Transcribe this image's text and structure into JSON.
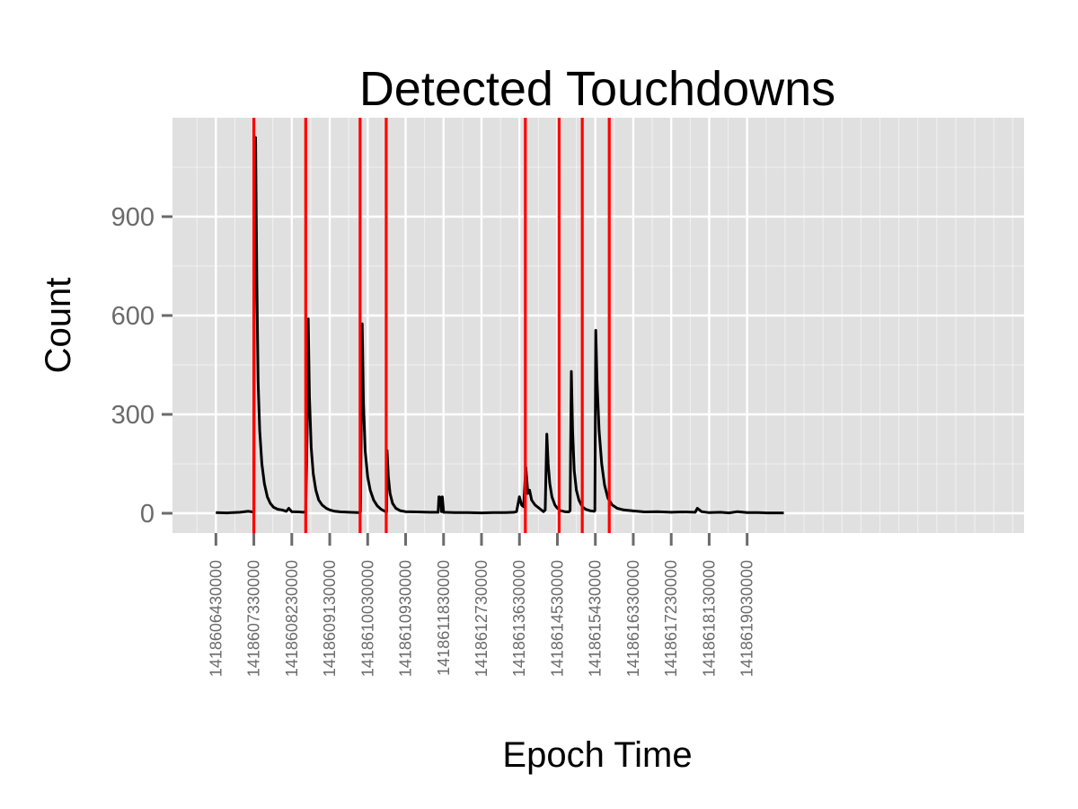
{
  "chart_data": {
    "type": "line",
    "title": "Detected Touchdowns",
    "xlabel": "Epoch Time",
    "ylabel": "Count",
    "xlim": [
      1418605400000,
      1418625600000
    ],
    "ylim": [
      -60,
      1200
    ],
    "x_ticks": [
      1418606430000,
      1418607330000,
      1418608230000,
      1418609130000,
      1418610030000,
      1418610930000,
      1418611830000,
      1418612730000,
      1418613630000,
      1418614530000,
      1418615430000,
      1418616330000,
      1418617230000,
      1418618130000,
      1418619030000
    ],
    "x_tick_labels": [
      "1418606430000",
      "1418607330000",
      "1418608230000",
      "1418609130000",
      "1418610030000",
      "1418610930000",
      "1418611830000",
      "1418612730000",
      "1418613630000",
      "1418614530000",
      "1418615430000",
      "1418616330000",
      "1418617230000",
      "1418618130000",
      "1418619030000"
    ],
    "y_ticks": [
      0,
      300,
      600,
      900
    ],
    "y_tick_labels": [
      "0",
      "300",
      "600",
      "900"
    ],
    "grid": true,
    "colors": {
      "panel": "#e0e0e0",
      "grid": "#ffffff",
      "line": "#000000",
      "marker": "#ff0000"
    },
    "series": [
      {
        "points": [
          [
            1418606430000,
            2
          ],
          [
            1418606700000,
            1
          ],
          [
            1418607000000,
            3
          ],
          [
            1418607200000,
            6
          ],
          [
            1418607300000,
            4
          ],
          [
            1418607330000,
            2
          ],
          [
            1418607340000,
            900
          ],
          [
            1418607370000,
            1140
          ],
          [
            1418607400000,
            700
          ],
          [
            1418607430000,
            400
          ],
          [
            1418607470000,
            250
          ],
          [
            1418607520000,
            150
          ],
          [
            1418607580000,
            90
          ],
          [
            1418607650000,
            50
          ],
          [
            1418607720000,
            30
          ],
          [
            1418607800000,
            18
          ],
          [
            1418607900000,
            12
          ],
          [
            1418608000000,
            10
          ],
          [
            1418608100000,
            6
          ],
          [
            1418608160000,
            15
          ],
          [
            1418608230000,
            5
          ],
          [
            1418608400000,
            4
          ],
          [
            1418608500000,
            3
          ],
          [
            1418608560000,
            5
          ],
          [
            1418608600000,
            300
          ],
          [
            1418608620000,
            590
          ],
          [
            1418608650000,
            350
          ],
          [
            1418608690000,
            200
          ],
          [
            1418608740000,
            120
          ],
          [
            1418608800000,
            70
          ],
          [
            1418608870000,
            40
          ],
          [
            1418608950000,
            25
          ],
          [
            1418609050000,
            15
          ],
          [
            1418609130000,
            10
          ],
          [
            1418609250000,
            6
          ],
          [
            1418609400000,
            4
          ],
          [
            1418609600000,
            3
          ],
          [
            1418609800000,
            2
          ],
          [
            1418609860000,
            4
          ],
          [
            1418609880000,
            300
          ],
          [
            1418609900000,
            575
          ],
          [
            1418609930000,
            330
          ],
          [
            1418609970000,
            190
          ],
          [
            1418610030000,
            110
          ],
          [
            1418610090000,
            70
          ],
          [
            1418610170000,
            40
          ],
          [
            1418610260000,
            22
          ],
          [
            1418610350000,
            12
          ],
          [
            1418610440000,
            6
          ],
          [
            1418610480000,
            4
          ],
          [
            1418610490000,
            190
          ],
          [
            1418610520000,
            110
          ],
          [
            1418610560000,
            60
          ],
          [
            1418610620000,
            30
          ],
          [
            1418610700000,
            15
          ],
          [
            1418610800000,
            8
          ],
          [
            1418610930000,
            5
          ],
          [
            1418611200000,
            4
          ],
          [
            1418611500000,
            3
          ],
          [
            1418611700000,
            3
          ],
          [
            1418611720000,
            50
          ],
          [
            1418611760000,
            48
          ],
          [
            1418611780000,
            5
          ],
          [
            1418611800000,
            50
          ],
          [
            1418611830000,
            3
          ],
          [
            1418612100000,
            2
          ],
          [
            1418612400000,
            2
          ],
          [
            1418612730000,
            1
          ],
          [
            1418613000000,
            2
          ],
          [
            1418613300000,
            2
          ],
          [
            1418613500000,
            3
          ],
          [
            1418613560000,
            5
          ],
          [
            1418613630000,
            50
          ],
          [
            1418613680000,
            25
          ],
          [
            1418613730000,
            20
          ],
          [
            1418613780000,
            140
          ],
          [
            1418613830000,
            60
          ],
          [
            1418613870000,
            70
          ],
          [
            1418613920000,
            40
          ],
          [
            1418614000000,
            25
          ],
          [
            1418614100000,
            15
          ],
          [
            1418614150000,
            10
          ],
          [
            1418614200000,
            5
          ],
          [
            1418614240000,
            10
          ],
          [
            1418614280000,
            240
          ],
          [
            1418614310000,
            150
          ],
          [
            1418614350000,
            90
          ],
          [
            1418614400000,
            50
          ],
          [
            1418614470000,
            25
          ],
          [
            1418614530000,
            15
          ],
          [
            1418614600000,
            8
          ],
          [
            1418614700000,
            5
          ],
          [
            1418614800000,
            4
          ],
          [
            1418614830000,
            8
          ],
          [
            1418614860000,
            430
          ],
          [
            1418614890000,
            250
          ],
          [
            1418614930000,
            130
          ],
          [
            1418614980000,
            70
          ],
          [
            1418615040000,
            40
          ],
          [
            1418615120000,
            20
          ],
          [
            1418615200000,
            12
          ],
          [
            1418615300000,
            8
          ],
          [
            1418615400000,
            6
          ],
          [
            1418615420000,
            8
          ],
          [
            1418615440000,
            555
          ],
          [
            1418615470000,
            400
          ],
          [
            1418615520000,
            250
          ],
          [
            1418615580000,
            150
          ],
          [
            1418615650000,
            85
          ],
          [
            1418615730000,
            45
          ],
          [
            1418615830000,
            25
          ],
          [
            1418615950000,
            15
          ],
          [
            1418616100000,
            10
          ],
          [
            1418616330000,
            7
          ],
          [
            1418616600000,
            4
          ],
          [
            1418616900000,
            5
          ],
          [
            1418617230000,
            3
          ],
          [
            1418617500000,
            4
          ],
          [
            1418617800000,
            3
          ],
          [
            1418617850000,
            15
          ],
          [
            1418617950000,
            5
          ],
          [
            1418618130000,
            2
          ],
          [
            1418618400000,
            3
          ],
          [
            1418618600000,
            1
          ],
          [
            1418618800000,
            5
          ],
          [
            1418619030000,
            2
          ],
          [
            1418619300000,
            2
          ],
          [
            1418619500000,
            1
          ],
          [
            1418619900000,
            1
          ]
        ]
      }
    ],
    "vlines": [
      1418607330000,
      1418608560000,
      1418609850000,
      1418610470000,
      1418613770000,
      1418614570000,
      1418615120000,
      1418615760000
    ]
  }
}
